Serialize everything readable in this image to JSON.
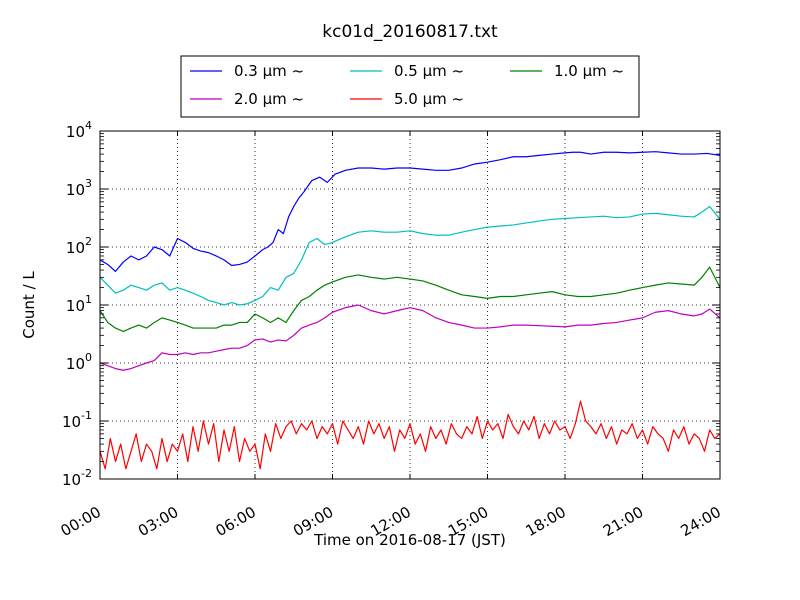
{
  "chart_data": {
    "type": "line",
    "title": "kc01d_20160817.txt",
    "xlabel": "Time on 2016-08-17 (JST)",
    "ylabel": "Count / L",
    "x_range_hours": [
      0,
      24
    ],
    "x_ticks": [
      {
        "hour": 0,
        "label": "00:00"
      },
      {
        "hour": 3,
        "label": "03:00"
      },
      {
        "hour": 6,
        "label": "06:00"
      },
      {
        "hour": 9,
        "label": "09:00"
      },
      {
        "hour": 12,
        "label": "12:00"
      },
      {
        "hour": 15,
        "label": "15:00"
      },
      {
        "hour": 18,
        "label": "18:00"
      },
      {
        "hour": 21,
        "label": "21:00"
      },
      {
        "hour": 24,
        "label": "24:00"
      }
    ],
    "y_scale": "log",
    "ylim": [
      0.01,
      10000
    ],
    "y_ticks": [
      {
        "value": 0.01,
        "base": "10",
        "exp": "-2"
      },
      {
        "value": 0.1,
        "base": "10",
        "exp": "-1"
      },
      {
        "value": 1,
        "base": "10",
        "exp": "0"
      },
      {
        "value": 10,
        "base": "10",
        "exp": "1"
      },
      {
        "value": 100,
        "base": "10",
        "exp": "2"
      },
      {
        "value": 1000,
        "base": "10",
        "exp": "3"
      },
      {
        "value": 10000,
        "base": "10",
        "exp": "4"
      }
    ],
    "grid": true,
    "legend_position": "top-center-outside",
    "series": [
      {
        "name": "0.3 μm ~",
        "color": "#0000ff",
        "x": [
          0,
          0.3,
          0.6,
          0.9,
          1.2,
          1.5,
          1.8,
          2.1,
          2.4,
          2.7,
          3.0,
          3.3,
          3.6,
          3.9,
          4.2,
          4.5,
          4.8,
          5.1,
          5.4,
          5.7,
          6.0,
          6.3,
          6.5,
          6.7,
          6.9,
          7.1,
          7.3,
          7.5,
          7.7,
          7.9,
          8.2,
          8.5,
          8.8,
          9.1,
          9.5,
          10,
          10.5,
          11,
          11.5,
          12,
          12.5,
          13,
          13.5,
          14,
          14.5,
          15,
          15.5,
          16,
          16.5,
          17,
          17.5,
          18,
          18.3,
          18.6,
          19,
          19.5,
          20,
          20.5,
          21,
          21.5,
          22,
          22.5,
          23,
          23.5,
          24
        ],
        "y": [
          60,
          50,
          38,
          55,
          70,
          60,
          70,
          100,
          90,
          70,
          140,
          120,
          95,
          85,
          80,
          70,
          60,
          48,
          50,
          55,
          70,
          90,
          100,
          120,
          200,
          170,
          330,
          500,
          700,
          900,
          1400,
          1600,
          1300,
          1800,
          2100,
          2300,
          2300,
          2200,
          2300,
          2300,
          2200,
          2100,
          2100,
          2300,
          2700,
          2900,
          3200,
          3600,
          3600,
          3800,
          4000,
          4200,
          4300,
          4300,
          4000,
          4300,
          4300,
          4200,
          4300,
          4400,
          4200,
          4000,
          4000,
          4100,
          3800
        ]
      },
      {
        "name": "0.5 μm ~",
        "color": "#00bfbf",
        "x": [
          0,
          0.3,
          0.6,
          0.9,
          1.2,
          1.5,
          1.8,
          2.1,
          2.4,
          2.7,
          3.0,
          3.3,
          3.6,
          3.9,
          4.2,
          4.5,
          4.8,
          5.1,
          5.4,
          5.7,
          6.0,
          6.3,
          6.6,
          6.9,
          7.2,
          7.5,
          7.8,
          8.1,
          8.4,
          8.7,
          9.0,
          9.5,
          10,
          10.5,
          11,
          11.5,
          12,
          12.5,
          13,
          13.5,
          14,
          14.5,
          15,
          15.5,
          16,
          16.5,
          17,
          17.5,
          18,
          18.5,
          19,
          19.5,
          20,
          20.5,
          21,
          21.5,
          22,
          22.5,
          23,
          23.3,
          23.6,
          24
        ],
        "y": [
          30,
          22,
          16,
          18,
          22,
          20,
          18,
          22,
          24,
          18,
          20,
          18,
          16,
          14,
          12,
          11,
          10,
          11,
          10,
          10.5,
          12,
          14,
          20,
          18,
          30,
          35,
          60,
          120,
          140,
          110,
          120,
          150,
          180,
          190,
          180,
          180,
          190,
          170,
          160,
          160,
          180,
          200,
          220,
          230,
          240,
          260,
          280,
          300,
          310,
          320,
          330,
          340,
          320,
          330,
          370,
          380,
          360,
          340,
          330,
          400,
          500,
          300
        ]
      },
      {
        "name": "1.0 μm ~",
        "color": "#008000",
        "x": [
          0,
          0.3,
          0.6,
          0.9,
          1.2,
          1.5,
          1.8,
          2.1,
          2.4,
          2.7,
          3.0,
          3.3,
          3.6,
          3.9,
          4.2,
          4.5,
          4.8,
          5.1,
          5.4,
          5.7,
          6.0,
          6.3,
          6.6,
          6.9,
          7.2,
          7.5,
          7.8,
          8.1,
          8.4,
          8.7,
          9.0,
          9.5,
          10,
          10.5,
          11,
          11.5,
          12,
          12.5,
          13,
          13.5,
          14,
          14.5,
          15,
          15.5,
          16,
          16.5,
          17,
          17.5,
          18,
          18.5,
          19,
          19.5,
          20,
          20.5,
          21,
          21.5,
          22,
          22.5,
          23,
          23.3,
          23.6,
          24
        ],
        "y": [
          8,
          5,
          4,
          3.5,
          4,
          4.5,
          4,
          5,
          6,
          5.5,
          5,
          4.5,
          4,
          4,
          4,
          4,
          4.5,
          4.5,
          5,
          5,
          7,
          6,
          5,
          6,
          5,
          8,
          12,
          14,
          18,
          22,
          25,
          30,
          33,
          30,
          28,
          30,
          28,
          26,
          22,
          18,
          15,
          14,
          13,
          14,
          14,
          15,
          16,
          17,
          15,
          14,
          14,
          15,
          16,
          18,
          20,
          22,
          24,
          23,
          22,
          30,
          45,
          20
        ]
      },
      {
        "name": "2.0 μm ~",
        "color": "#bf00bf",
        "x": [
          0,
          0.3,
          0.6,
          0.9,
          1.2,
          1.5,
          1.8,
          2.1,
          2.4,
          2.7,
          3.0,
          3.3,
          3.6,
          3.9,
          4.2,
          4.5,
          4.8,
          5.1,
          5.4,
          5.7,
          6.0,
          6.3,
          6.6,
          6.9,
          7.2,
          7.5,
          7.8,
          8.1,
          8.4,
          8.7,
          9.0,
          9.5,
          10,
          10.5,
          11,
          11.5,
          12,
          12.5,
          13,
          13.5,
          14,
          14.5,
          15,
          15.5,
          16,
          16.5,
          17,
          17.5,
          18,
          18.5,
          19,
          19.5,
          20,
          20.5,
          21,
          21.5,
          22,
          22.5,
          23,
          23.3,
          23.6,
          24
        ],
        "y": [
          1.0,
          0.9,
          0.8,
          0.75,
          0.8,
          0.9,
          1.0,
          1.1,
          1.5,
          1.4,
          1.4,
          1.5,
          1.4,
          1.5,
          1.5,
          1.6,
          1.7,
          1.8,
          1.8,
          2.0,
          2.5,
          2.6,
          2.3,
          2.5,
          2.4,
          3,
          4,
          4.5,
          5,
          6,
          7.5,
          9,
          10,
          8,
          7,
          8,
          9,
          8,
          6,
          5,
          4.5,
          4,
          4,
          4.2,
          4.5,
          4.5,
          4.4,
          4.3,
          4.2,
          4.5,
          4.5,
          4.8,
          5,
          5.5,
          6,
          7.5,
          8,
          7,
          6.5,
          7,
          8.5,
          6
        ]
      },
      {
        "name": "5.0 μm ~",
        "color": "#ff0000",
        "x": [
          0,
          0.2,
          0.4,
          0.6,
          0.8,
          1.0,
          1.2,
          1.4,
          1.6,
          1.8,
          2.0,
          2.2,
          2.4,
          2.6,
          2.8,
          3.0,
          3.2,
          3.4,
          3.6,
          3.8,
          4.0,
          4.2,
          4.4,
          4.6,
          4.8,
          5.0,
          5.2,
          5.4,
          5.6,
          5.8,
          6.0,
          6.2,
          6.4,
          6.6,
          6.8,
          7.0,
          7.2,
          7.4,
          7.6,
          7.8,
          8.0,
          8.2,
          8.4,
          8.6,
          8.8,
          9.0,
          9.2,
          9.4,
          9.6,
          9.8,
          10.0,
          10.2,
          10.4,
          10.6,
          10.8,
          11.0,
          11.2,
          11.4,
          11.6,
          11.8,
          12.0,
          12.2,
          12.4,
          12.6,
          12.8,
          13.0,
          13.2,
          13.4,
          13.6,
          13.8,
          14.0,
          14.2,
          14.4,
          14.6,
          14.8,
          15.0,
          15.2,
          15.4,
          15.6,
          15.8,
          16.0,
          16.2,
          16.4,
          16.6,
          16.8,
          17.0,
          17.2,
          17.4,
          17.6,
          17.8,
          18.0,
          18.2,
          18.4,
          18.6,
          18.8,
          19.0,
          19.2,
          19.4,
          19.6,
          19.8,
          20.0,
          20.2,
          20.4,
          20.6,
          20.8,
          21.0,
          21.2,
          21.4,
          21.6,
          21.8,
          22.0,
          22.2,
          22.4,
          22.6,
          22.8,
          23.0,
          23.2,
          23.4,
          23.6,
          23.8,
          24.0
        ],
        "y": [
          0.03,
          0.015,
          0.05,
          0.02,
          0.04,
          0.015,
          0.03,
          0.06,
          0.02,
          0.04,
          0.03,
          0.015,
          0.05,
          0.02,
          0.04,
          0.03,
          0.06,
          0.02,
          0.08,
          0.03,
          0.1,
          0.04,
          0.09,
          0.02,
          0.07,
          0.03,
          0.08,
          0.02,
          0.05,
          0.03,
          0.04,
          0.015,
          0.06,
          0.03,
          0.09,
          0.05,
          0.08,
          0.1,
          0.06,
          0.09,
          0.07,
          0.1,
          0.05,
          0.08,
          0.06,
          0.09,
          0.04,
          0.1,
          0.07,
          0.05,
          0.08,
          0.04,
          0.1,
          0.06,
          0.09,
          0.05,
          0.08,
          0.03,
          0.07,
          0.05,
          0.09,
          0.04,
          0.06,
          0.03,
          0.08,
          0.05,
          0.07,
          0.04,
          0.09,
          0.06,
          0.05,
          0.08,
          0.06,
          0.12,
          0.05,
          0.1,
          0.07,
          0.09,
          0.05,
          0.13,
          0.08,
          0.06,
          0.1,
          0.07,
          0.12,
          0.05,
          0.09,
          0.06,
          0.1,
          0.07,
          0.08,
          0.05,
          0.09,
          0.22,
          0.1,
          0.08,
          0.06,
          0.09,
          0.05,
          0.08,
          0.04,
          0.07,
          0.06,
          0.09,
          0.05,
          0.07,
          0.04,
          0.08,
          0.06,
          0.05,
          0.03,
          0.07,
          0.05,
          0.08,
          0.04,
          0.06,
          0.05,
          0.03,
          0.07,
          0.05,
          0.06
        ]
      }
    ]
  }
}
